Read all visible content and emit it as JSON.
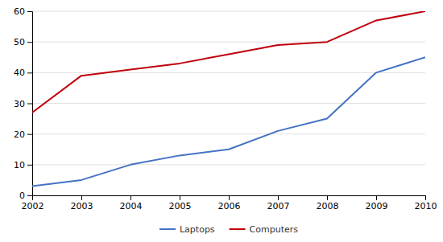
{
  "chart_data": {
    "type": "line",
    "x": [
      2002,
      2003,
      2004,
      2005,
      2006,
      2007,
      2008,
      2009,
      2010
    ],
    "series": [
      {
        "name": "Laptops",
        "color": "#4472c4",
        "values": [
          3,
          5,
          10,
          13,
          15,
          21,
          25,
          40,
          45
        ]
      },
      {
        "name": "Computers",
        "color": "#c0000b",
        "values": [
          27,
          39,
          41,
          43,
          46,
          49,
          50,
          57,
          60
        ]
      }
    ],
    "xlim": [
      2002,
      2010
    ],
    "xticks": [
      2002,
      2003,
      2004,
      2005,
      2006,
      2007,
      2008,
      2009,
      2010
    ],
    "ylim": [
      0,
      60
    ],
    "yticks": [
      0,
      10,
      20,
      30,
      40,
      50,
      60
    ],
    "grid": "y",
    "legend": "bottom"
  }
}
